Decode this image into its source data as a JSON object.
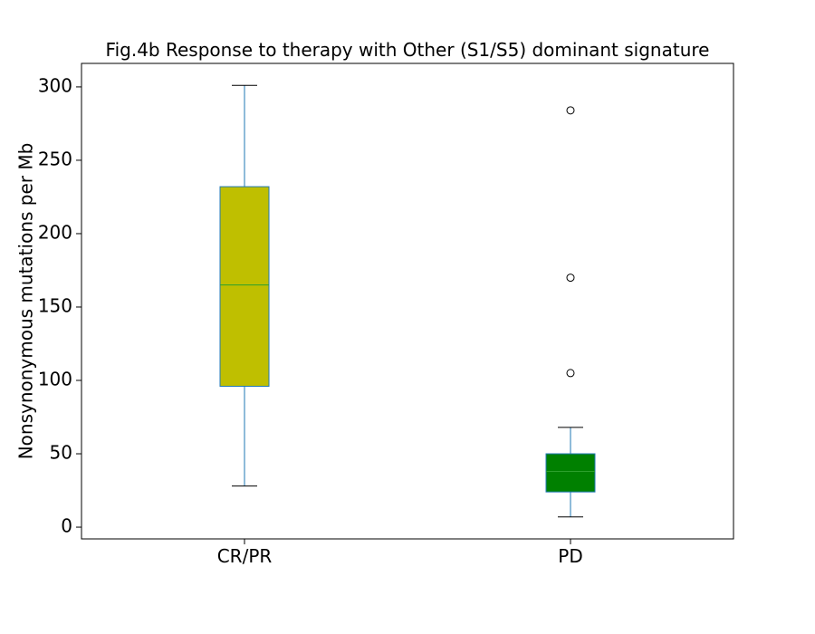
{
  "chart_data": {
    "type": "box",
    "title": "Fig.4b Response to therapy with Other (S1/S5) dominant signature",
    "xlabel": "",
    "ylabel": "Nonsynonymous mutations per Mb",
    "ylim": [
      -8,
      316
    ],
    "yticks": [
      0,
      50,
      100,
      150,
      200,
      250,
      300
    ],
    "grid": false,
    "categories": [
      "CR/PR",
      "PD"
    ],
    "boxes": [
      {
        "category": "CR/PR",
        "whisker_low": 28,
        "q1": 96,
        "median": 165,
        "q3": 232,
        "whisker_high": 301,
        "outliers": [],
        "fill": "#bfbf00"
      },
      {
        "category": "PD",
        "whisker_low": 7,
        "q1": 24,
        "median": 38,
        "q3": 50,
        "whisker_high": 68,
        "outliers": [
          105,
          170,
          284
        ],
        "fill": "#008000"
      }
    ],
    "colors": {
      "box_edge": "#1f77b4",
      "median": "#2ca02c",
      "whisker": "#1f77b4",
      "cap": "#000000",
      "axes": "#000000"
    }
  }
}
